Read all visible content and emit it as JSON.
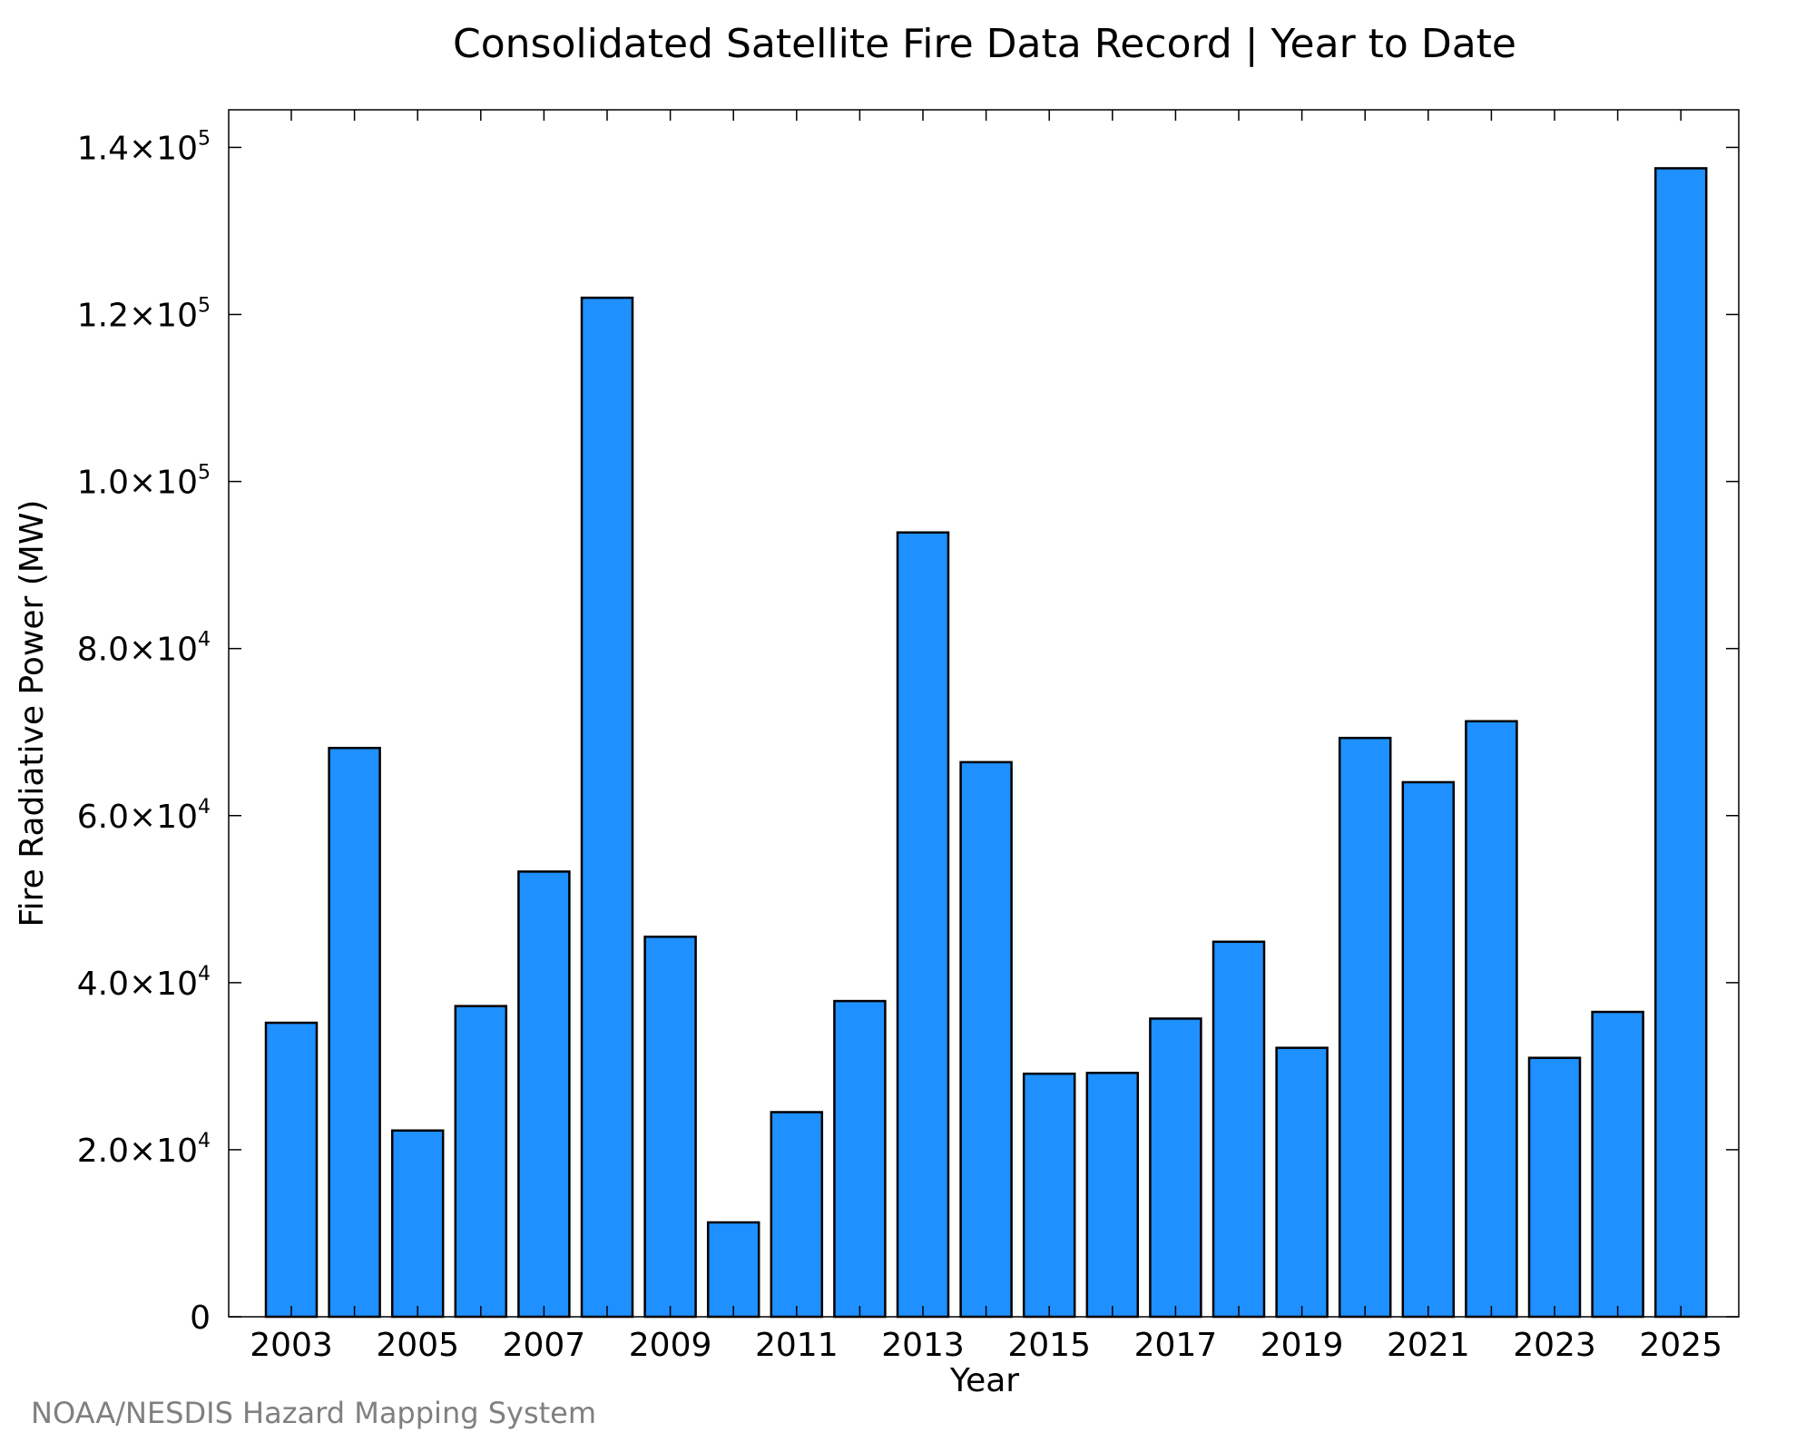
{
  "chart_data": {
    "type": "bar",
    "title": "Consolidated Satellite Fire Data Record | Year to Date",
    "xlabel": "Year",
    "ylabel": "Fire Radiative Power (MW)",
    "categories": [
      "2003",
      "2004",
      "2005",
      "2006",
      "2007",
      "2008",
      "2009",
      "2010",
      "2011",
      "2012",
      "2013",
      "2014",
      "2015",
      "2016",
      "2017",
      "2018",
      "2019",
      "2020",
      "2021",
      "2022",
      "2023",
      "2024",
      "2025"
    ],
    "values": [
      35200,
      68100,
      22300,
      37200,
      53300,
      122000,
      45500,
      11300,
      24500,
      37800,
      93900,
      66400,
      29100,
      29200,
      35700,
      44900,
      32200,
      69300,
      64000,
      71300,
      31000,
      36500,
      137500
    ],
    "x_tick_labels": [
      "2003",
      "2005",
      "2007",
      "2009",
      "2011",
      "2013",
      "2015",
      "2017",
      "2019",
      "2021",
      "2023",
      "2025"
    ],
    "y_ticks": [
      {
        "value": 0,
        "mantissa": "0",
        "exponent": ""
      },
      {
        "value": 20000,
        "mantissa": "2.0×10",
        "exponent": "4"
      },
      {
        "value": 40000,
        "mantissa": "4.0×10",
        "exponent": "4"
      },
      {
        "value": 60000,
        "mantissa": "6.0×10",
        "exponent": "4"
      },
      {
        "value": 80000,
        "mantissa": "8.0×10",
        "exponent": "4"
      },
      {
        "value": 100000,
        "mantissa": "1.0×10",
        "exponent": "5"
      },
      {
        "value": 120000,
        "mantissa": "1.2×10",
        "exponent": "5"
      },
      {
        "value": 140000,
        "mantissa": "1.4×10",
        "exponent": "5"
      }
    ],
    "ylim": [
      0,
      144500
    ],
    "grid": false,
    "legend": "none",
    "bar_color": "#1e90ff",
    "bar_edge_color": "#000000"
  },
  "credit": "NOAA/NESDIS Hazard Mapping System"
}
